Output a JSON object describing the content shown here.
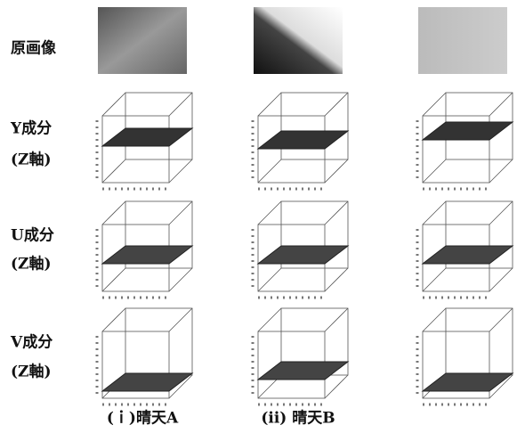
{
  "rows": [
    {
      "label": "原画像"
    },
    {
      "label": "Y成分",
      "sublabel": "(Z軸)"
    },
    {
      "label": "U成分",
      "sublabel": "(Z軸)"
    },
    {
      "label": "V成分",
      "sublabel": "(Z軸)"
    }
  ],
  "columns": [
    "(ｉ)晴天A",
    "(ⅱ) 晴天B"
  ]
}
